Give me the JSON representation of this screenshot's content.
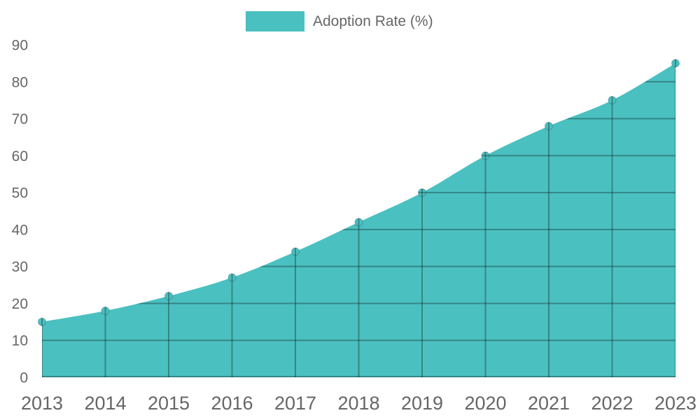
{
  "legend": {
    "label": "Adoption Rate (%)",
    "swatch_color": "#4bc0c0"
  },
  "chart_data": {
    "type": "area",
    "title": "",
    "xlabel": "",
    "ylabel": "",
    "categories": [
      "2013",
      "2014",
      "2015",
      "2016",
      "2017",
      "2018",
      "2019",
      "2020",
      "2021",
      "2022",
      "2023"
    ],
    "series": [
      {
        "name": "Adoption Rate (%)",
        "values": [
          15,
          18,
          22,
          27,
          34,
          42,
          50,
          60,
          68,
          75,
          85
        ]
      }
    ],
    "ylim": [
      0,
      90
    ],
    "ytick_step": 10,
    "yticks": [
      0,
      10,
      20,
      30,
      40,
      50,
      60,
      70,
      80,
      90
    ],
    "grid": true,
    "grid_visible_only_inside_area": true,
    "smooth": true,
    "legend_position": "top-center",
    "colors": {
      "area_fill": "#4bc0c0",
      "point_fill": "#4bc0c0",
      "point_stroke": "rgba(0,0,0,0.15)",
      "grid_over_area": "rgba(0,0,0,0.3)",
      "tick_text": "#666666",
      "legend_text": "#666666"
    }
  }
}
